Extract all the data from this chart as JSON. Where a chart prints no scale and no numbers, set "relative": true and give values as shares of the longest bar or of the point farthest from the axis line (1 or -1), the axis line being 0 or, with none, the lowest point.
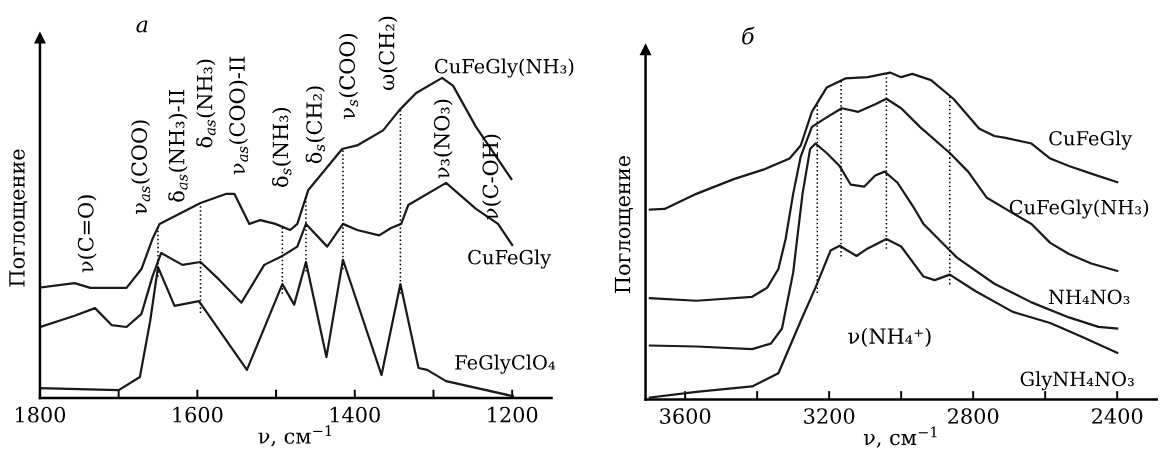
{
  "chart_data": [
    {
      "type": "line",
      "title": "а",
      "xlabel": "ν, см$^{−1}$",
      "ylabel": "Поглощение",
      "relative": true,
      "tick_labels": "x",
      "legend": false,
      "grid": false,
      "marker": "none",
      "line_style": "solid",
      "xlim": [
        1800,
        1150
      ],
      "xticks": [
        1800,
        {
          "value": 1700,
          "label": null
        },
        1600,
        {
          "value": 1500,
          "label": null
        },
        1400,
        {
          "value": 1300,
          "label": null
        },
        1200
      ],
      "series": [
        {
          "name": "CuFeGly(NH₃)",
          "color": "#1a1a1a",
          "x": [
            1800,
            1756,
            1736,
            1690,
            1671,
            1657,
            1648,
            1596,
            1563,
            1553,
            1534,
            1520,
            1501,
            1482,
            1473,
            1459,
            1416,
            1397,
            1364,
            1343,
            1322,
            1289,
            1275,
            1246,
            1201
          ],
          "values": [
            0.345,
            0.359,
            0.344,
            0.344,
            0.403,
            0.497,
            0.544,
            0.609,
            0.638,
            0.638,
            0.544,
            0.556,
            0.544,
            0.525,
            0.544,
            0.65,
            0.778,
            0.789,
            0.836,
            0.9,
            0.953,
            1.0,
            0.975,
            0.847,
            0.684
          ]
        },
        {
          "name": "CuFeGly",
          "color": "#1a1a1a",
          "x": [
            1800,
            1756,
            1730,
            1709,
            1690,
            1671,
            1657,
            1646,
            1619,
            1596,
            1572,
            1544,
            1515,
            1492,
            1473,
            1462,
            1435,
            1415,
            1397,
            1369,
            1354,
            1341,
            1332,
            1284,
            1246,
            1218,
            1200
          ],
          "values": [
            0.222,
            0.257,
            0.281,
            0.228,
            0.222,
            0.263,
            0.38,
            0.453,
            0.416,
            0.425,
            0.369,
            0.298,
            0.416,
            0.444,
            0.473,
            0.544,
            0.473,
            0.544,
            0.525,
            0.508,
            0.531,
            0.544,
            0.603,
            0.672,
            0.591,
            0.544,
            0.478
          ]
        },
        {
          "name": "FeGlyClO₄",
          "color": "#1a1a1a",
          "x": [
            1800,
            1700,
            1673,
            1660,
            1650,
            1629,
            1598,
            1537,
            1492,
            1477,
            1462,
            1436,
            1415,
            1366,
            1342,
            1319,
            1308,
            1284,
            1199
          ],
          "values": [
            0.031,
            0.025,
            0.066,
            0.24,
            0.409,
            0.288,
            0.303,
            0.088,
            0.356,
            0.292,
            0.425,
            0.128,
            0.432,
            0.072,
            0.356,
            0.094,
            0.088,
            0.053,
            0.006
          ]
        }
      ],
      "ref_lines": [
        {
          "axis": "x",
          "value": 1650,
          "line_style": "dotted",
          "label": "ν$_{as}$(COO)"
        },
        {
          "axis": "x",
          "value": 1596,
          "line_style": "dotted",
          "label": "δ$_{as}$(NH₃)"
        },
        {
          "axis": "x",
          "value": 1492,
          "line_style": "dotted",
          "label": "δ$_{s}$(NH₃)"
        },
        {
          "axis": "x",
          "value": 1462,
          "line_style": "dotted",
          "label": "δ$_{s}$(CH₂)"
        },
        {
          "axis": "x",
          "value": 1415,
          "line_style": "dotted",
          "label": "ν$_{s}$(COO)"
        },
        {
          "axis": "x",
          "value": 1342,
          "line_style": "dotted",
          "label": "ω(CH₂)"
        }
      ],
      "annotations": [
        "ν(C=O)",
        "δ$_{as}$(NH₃)-II",
        "ν$_{as}$(COO)-II",
        "ν₃(NO₃)",
        "ν(C-OH)"
      ]
    },
    {
      "type": "line",
      "title": "б",
      "xlabel": "ν, см$^{−1}$",
      "ylabel": "Поглощение",
      "relative": true,
      "tick_labels": "x",
      "legend": false,
      "grid": false,
      "marker": "none",
      "line_style": "solid",
      "xlim": [
        3710,
        2290
      ],
      "xticks": [
        3600,
        {
          "value": 3400,
          "label": null
        },
        3200,
        {
          "value": 3000,
          "label": null
        },
        2800,
        {
          "value": 2600,
          "label": null
        },
        2400
      ],
      "series": [
        {
          "name": "CuFeGly",
          "color": "#1a1a1a",
          "x": [
            3698,
            3657,
            3569,
            3465,
            3383,
            3310,
            3279,
            3248,
            3207,
            3155,
            3093,
            3031,
            3000,
            2969,
            2917,
            2855,
            2783,
            2741,
            2710,
            2638,
            2586,
            2534,
            2472,
            2400
          ],
          "values": [
            0.581,
            0.583,
            0.629,
            0.674,
            0.703,
            0.737,
            0.777,
            0.88,
            0.954,
            0.982,
            0.986,
            1.0,
            0.986,
            0.996,
            0.977,
            0.92,
            0.828,
            0.806,
            0.8,
            0.783,
            0.737,
            0.714,
            0.691,
            0.665
          ]
        },
        {
          "name": "CuFeGly(NH₃)",
          "color": "#1a1a1a",
          "x": [
            3698,
            3569,
            3414,
            3372,
            3341,
            3321,
            3300,
            3279,
            3248,
            3207,
            3165,
            3119,
            3072,
            3041,
            3000,
            2948,
            2865,
            2814,
            2762,
            2710,
            2638,
            2586,
            2534,
            2472,
            2400
          ],
          "values": [
            0.31,
            0.302,
            0.314,
            0.342,
            0.399,
            0.491,
            0.629,
            0.743,
            0.834,
            0.863,
            0.891,
            0.88,
            0.903,
            0.92,
            0.891,
            0.834,
            0.754,
            0.697,
            0.617,
            0.583,
            0.537,
            0.479,
            0.445,
            0.416,
            0.393
          ]
        },
        {
          "name": "NH₄NO₃",
          "color": "#1a1a1a",
          "x": [
            3698,
            3569,
            3414,
            3362,
            3331,
            3300,
            3274,
            3253,
            3238,
            3207,
            3171,
            3140,
            3103,
            3072,
            3046,
            3010,
            2969,
            2938,
            2845,
            2741,
            2638,
            2534,
            2452,
            2400
          ],
          "values": [
            0.165,
            0.162,
            0.154,
            0.171,
            0.217,
            0.388,
            0.629,
            0.766,
            0.783,
            0.754,
            0.714,
            0.657,
            0.651,
            0.685,
            0.697,
            0.663,
            0.594,
            0.537,
            0.434,
            0.354,
            0.297,
            0.251,
            0.222,
            0.217
          ]
        },
        {
          "name": "GlyNH₄NO₃",
          "color": "#1a1a1a",
          "x": [
            3698,
            3569,
            3414,
            3341,
            3279,
            3238,
            3196,
            3171,
            3124,
            3093,
            3041,
            3000,
            2938,
            2907,
            2865,
            2793,
            2690,
            2586,
            2503,
            2400
          ],
          "values": [
            0.006,
            0.023,
            0.04,
            0.08,
            0.24,
            0.342,
            0.456,
            0.47,
            0.439,
            0.462,
            0.491,
            0.468,
            0.376,
            0.365,
            0.382,
            0.331,
            0.268,
            0.234,
            0.194,
            0.143
          ]
        }
      ],
      "ref_lines": [
        {
          "axis": "x",
          "value": 3233,
          "line_style": "dotted"
        },
        {
          "axis": "x",
          "value": 3167,
          "line_style": "dotted"
        },
        {
          "axis": "x",
          "value": 3041,
          "line_style": "dotted"
        },
        {
          "axis": "x",
          "value": 2865,
          "line_style": "dotted"
        }
      ],
      "annotations": [
        "ν(NH₄⁺)"
      ]
    }
  ]
}
